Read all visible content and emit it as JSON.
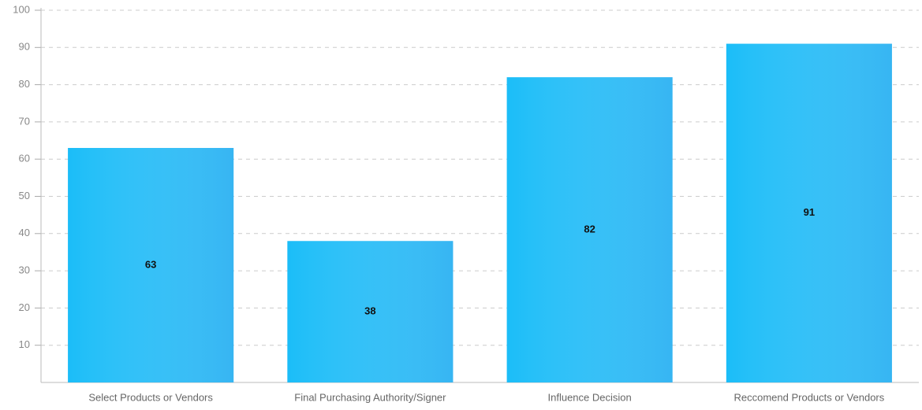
{
  "chart_data": {
    "type": "bar",
    "categories": [
      "Select Products or Vendors",
      "Final Purchasing Authority/Signer",
      "Influence Decision",
      "Reccomend Products or Vendors"
    ],
    "values": [
      63,
      38,
      82,
      91
    ],
    "color": "#1bbdf8",
    "ylim": [
      0,
      100
    ],
    "yticks": [
      10,
      20,
      30,
      40,
      50,
      60,
      70,
      80,
      90,
      100
    ],
    "grid": true
  }
}
